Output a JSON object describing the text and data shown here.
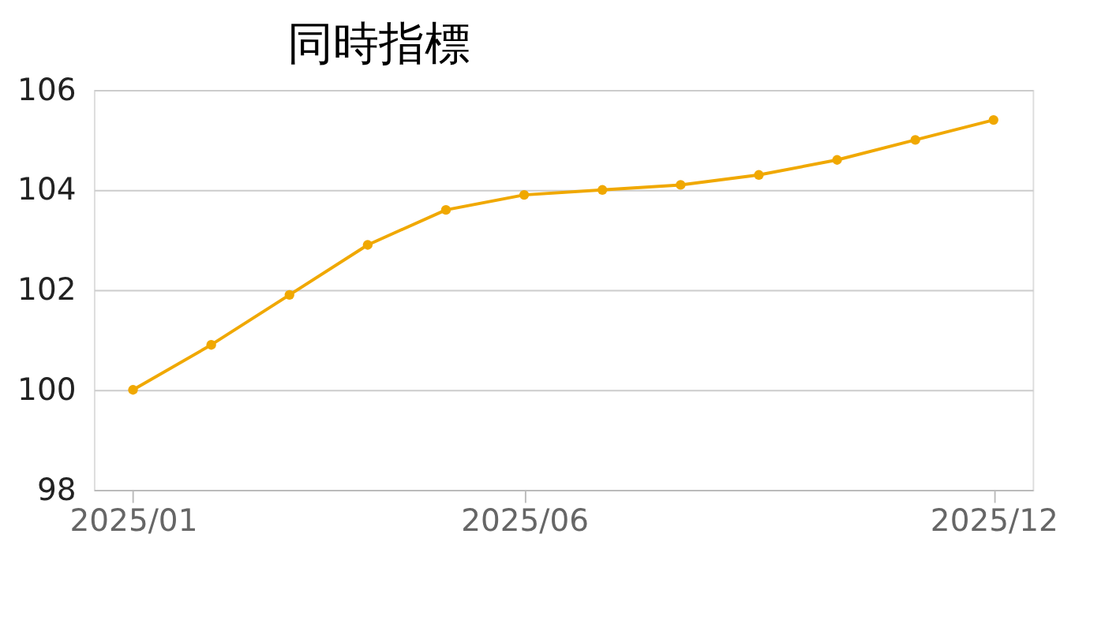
{
  "chart_data": {
    "type": "line",
    "title": "同時指標",
    "categories": [
      "2025/01",
      null,
      null,
      null,
      null,
      "2025/06",
      null,
      null,
      null,
      null,
      null,
      "2025/12"
    ],
    "series": [
      {
        "color": "#f0a800",
        "values": [
          100.0,
          100.9,
          101.9,
          102.9,
          103.6,
          103.9,
          104.0,
          104.1,
          104.3,
          104.6,
          105.0,
          105.4
        ]
      }
    ],
    "ylim": [
      98,
      106
    ],
    "yticks": [
      98,
      100,
      102,
      104,
      106
    ],
    "grid": "y",
    "marker": "circle",
    "line_style": "solid",
    "legend": false
  }
}
